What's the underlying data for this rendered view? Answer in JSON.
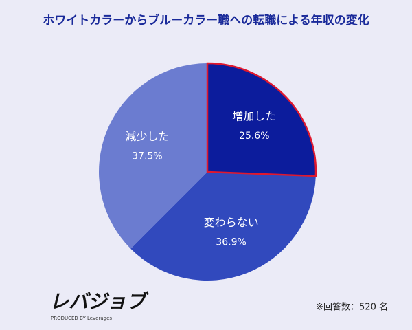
{
  "chart_data": {
    "type": "pie",
    "title": "ホワイトカラーからブルーカラー職への転職による年収の変化",
    "categories": [
      "増加した",
      "変わらない",
      "減少した"
    ],
    "values": [
      25.6,
      36.9,
      37.5
    ],
    "value_labels": [
      "25.6%",
      "36.9%",
      "37.5%"
    ],
    "colors": [
      "#0c1c9c",
      "#3149bd",
      "#6b7cd0"
    ],
    "highlight": {
      "category": "増加した",
      "edgecolor": "#e0182e"
    },
    "footnote": "※回答数：520 名",
    "logo": {
      "name": "レバジョブ",
      "tagline": "PRODUCED BY Leverages"
    }
  }
}
